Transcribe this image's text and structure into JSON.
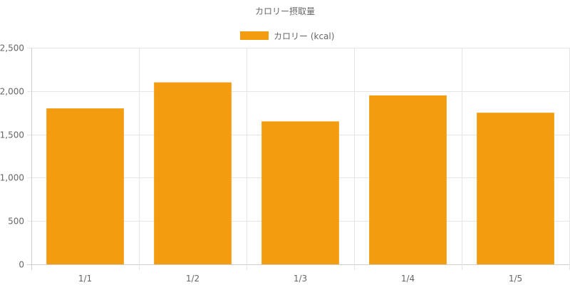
{
  "chart_data": {
    "type": "bar",
    "title": "カロリー摂取量",
    "categories": [
      "1/1",
      "1/2",
      "1/3",
      "1/4",
      "1/5"
    ],
    "series": [
      {
        "name": "カロリー (kcal)",
        "values": [
          1800,
          2100,
          1650,
          1950,
          1750
        ],
        "color": "#f39c0f"
      }
    ],
    "y_ticks": [
      "0",
      "500",
      "1,000",
      "1,500",
      "2,000",
      "2,500"
    ],
    "ylim": [
      0,
      2500
    ],
    "grid": true,
    "legend_position": "top-center"
  }
}
